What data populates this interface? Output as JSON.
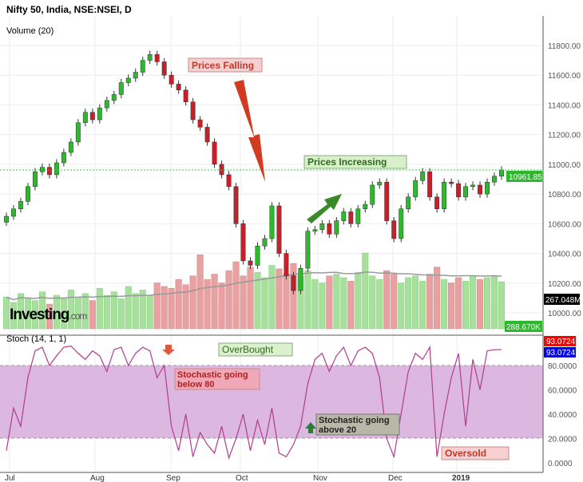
{
  "title": "Nifty 50, India, NSE:NSEI, D",
  "volume_label": "Volume (20)",
  "stoch_label": "Stoch (14, 1, 1)",
  "watermark": "Investing.com",
  "colors": {
    "up": "#2db82d",
    "down": "#c8202a",
    "vol_up": "#a6e09a",
    "vol_down": "#e8a0a0",
    "stoch": "#b03c8c",
    "band": "#dcb8e0",
    "price_line": "#2ecc40"
  },
  "chart_data": [
    {
      "type": "candlestick",
      "title": "Nifty 50, India, NSE:NSEI, D",
      "x_ticks": [
        "Jul",
        "Aug",
        "Sep",
        "Oct",
        "Nov",
        "Dec",
        "2019"
      ],
      "y_ticks": [
        "10000.00",
        "10200.00",
        "10400.00",
        "10600.00",
        "10800.00",
        "11000.00",
        "11200.00",
        "11400.00",
        "11600.00",
        "11800.00"
      ],
      "ylim": [
        9950,
        11850
      ],
      "last_price": "10961.85",
      "volume_last": "267.048M",
      "volume_ma_label": "288.670K",
      "closes": [
        10650,
        10700,
        10750,
        10850,
        10950,
        10980,
        10930,
        11010,
        11080,
        11150,
        11280,
        11350,
        11300,
        11380,
        11430,
        11470,
        11550,
        11580,
        11620,
        11700,
        11740,
        11690,
        11600,
        11540,
        11500,
        11420,
        11300,
        11250,
        11150,
        11000,
        10930,
        10850,
        10600,
        10350,
        10320,
        10450,
        10500,
        10720,
        10400,
        10250,
        10150,
        10300,
        10550,
        10560,
        10600,
        10530,
        10620,
        10680,
        10600,
        10700,
        10730,
        10860,
        10880,
        10620,
        10500,
        10700,
        10780,
        10890,
        10950,
        10780,
        10700,
        10880,
        10870,
        10780,
        10850,
        10860,
        10800,
        10880,
        10920,
        10962
      ],
      "volumes": [
        180,
        150,
        200,
        170,
        160,
        210,
        140,
        190,
        170,
        220,
        180,
        200,
        160,
        230,
        190,
        210,
        170,
        240,
        200,
        220,
        190,
        260,
        240,
        230,
        280,
        250,
        300,
        420,
        280,
        310,
        260,
        330,
        380,
        300,
        350,
        320,
        290,
        360,
        340,
        310,
        370,
        300,
        330,
        280,
        260,
        300,
        310,
        290,
        270,
        320,
        430,
        300,
        280,
        330,
        310,
        260,
        290,
        300,
        270,
        310,
        350,
        280,
        260,
        290,
        270,
        300,
        280,
        290,
        300,
        267
      ]
    },
    {
      "type": "line",
      "title": "Stoch (14, 1, 1)",
      "y_ticks": [
        "0.0000",
        "20.0000",
        "40.0000",
        "60.0000",
        "80.0000"
      ],
      "ylim": [
        -5,
        100
      ],
      "bands": [
        20,
        80
      ],
      "last_value": "93.0724",
      "values": [
        10,
        45,
        30,
        70,
        92,
        95,
        80,
        88,
        95,
        96,
        90,
        85,
        92,
        88,
        75,
        93,
        95,
        80,
        90,
        95,
        92,
        70,
        80,
        30,
        10,
        40,
        5,
        25,
        15,
        8,
        30,
        4,
        20,
        40,
        10,
        35,
        15,
        45,
        8,
        5,
        15,
        30,
        65,
        85,
        90,
        75,
        88,
        95,
        80,
        92,
        95,
        90,
        70,
        20,
        5,
        40,
        75,
        90,
        85,
        95,
        5,
        40,
        70,
        90,
        30,
        85,
        60,
        92,
        93,
        93.07
      ]
    }
  ],
  "annotations": {
    "falling": "Prices Falling",
    "increasing": "Prices Increasing",
    "overbought": "OverBought",
    "below80": [
      "Stochastic going",
      "below 80"
    ],
    "above20": [
      "Stochastic going",
      "above 20"
    ],
    "oversold": "Oversold"
  }
}
